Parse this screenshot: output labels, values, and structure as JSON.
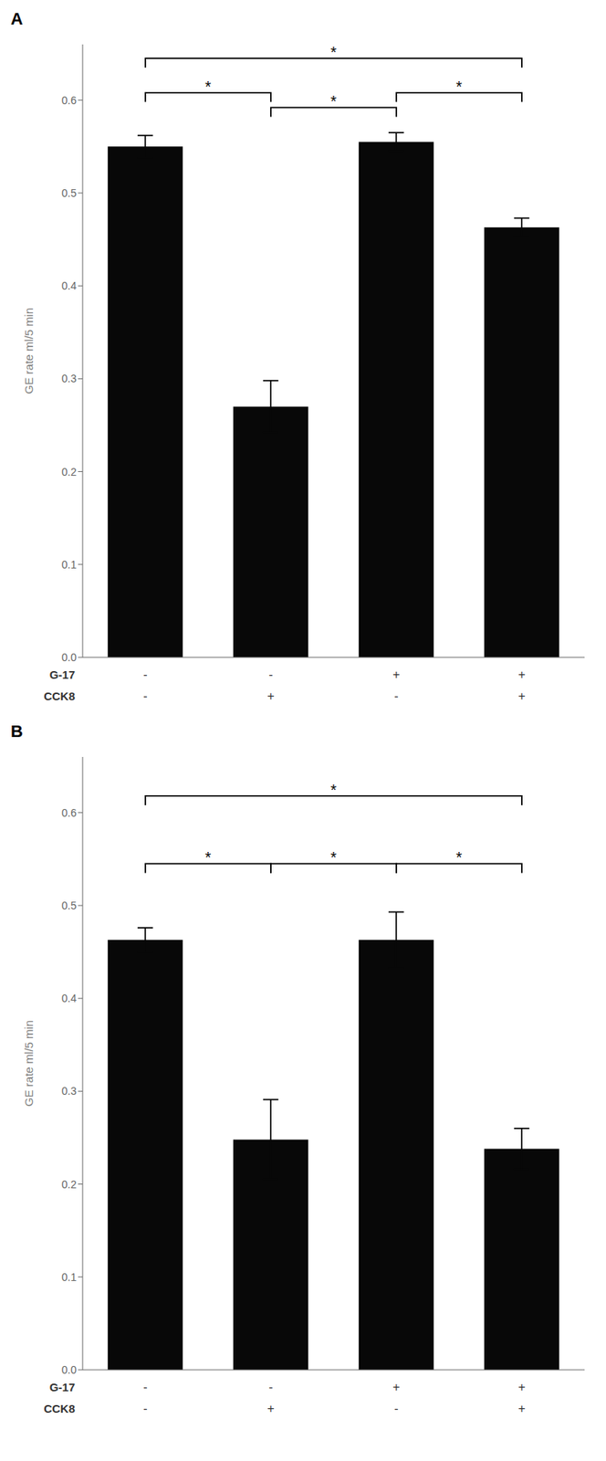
{
  "chart_data": [
    {
      "type": "bar",
      "title": "A",
      "ylabel": "GE rate ml/5 min",
      "values": [
        0.55,
        0.27,
        0.555,
        0.463
      ],
      "errors": [
        0.012,
        0.028,
        0.01,
        0.01
      ],
      "color": "#080808",
      "ylim": [
        0,
        0.66
      ],
      "yticks": [
        {
          "value": 0,
          "label": "0.0"
        },
        0.1,
        0.2,
        0.3,
        0.4,
        0.5,
        0.6
      ],
      "category_rows": [
        {
          "label": "G-17",
          "values": [
            "-",
            "-",
            "+",
            "+"
          ]
        },
        {
          "label": "CCK8",
          "values": [
            "-",
            "+",
            "-",
            "+"
          ]
        }
      ],
      "brackets": [
        {
          "x1": 0,
          "x2": 1,
          "y": 0.608,
          "star_y": 0.614,
          "text": "*"
        },
        {
          "x1": 0,
          "x2": 3,
          "y": 0.645,
          "star_y": 0.651,
          "text": "*"
        },
        {
          "x1": 2,
          "x2": 3,
          "y": 0.608,
          "star_y": 0.614,
          "text": "*"
        },
        {
          "x1": 1,
          "x2": 2,
          "y": 0.592,
          "star_y": 0.598,
          "text": "*"
        }
      ]
    },
    {
      "type": "bar",
      "title": "B",
      "ylabel": "GE rate ml/5 min",
      "values": [
        0.463,
        0.248,
        0.463,
        0.238
      ],
      "errors": [
        0.013,
        0.043,
        0.03,
        0.022
      ],
      "color": "#080808",
      "ylim": [
        0,
        0.66
      ],
      "yticks": [
        {
          "value": 0,
          "label": "0.0"
        },
        0.1,
        0.2,
        0.3,
        0.4,
        0.5,
        0.6
      ],
      "category_rows": [
        {
          "label": "G-17",
          "values": [
            "-",
            "-",
            "+",
            "+"
          ]
        },
        {
          "label": "CCK8",
          "values": [
            "-",
            "+",
            "-",
            "+"
          ]
        }
      ],
      "brackets": [
        {
          "x1": 0,
          "x2": 1,
          "y": 0.545,
          "star_y": 0.551,
          "text": "*"
        },
        {
          "x1": 0,
          "x2": 3,
          "y": 0.618,
          "star_y": 0.624,
          "text": "*"
        },
        {
          "x1": 2,
          "x2": 3,
          "y": 0.545,
          "star_y": 0.551,
          "text": "*"
        },
        {
          "x1": 1,
          "x2": 2,
          "y": 0.545,
          "star_y": 0.551,
          "text": "*"
        }
      ]
    }
  ]
}
